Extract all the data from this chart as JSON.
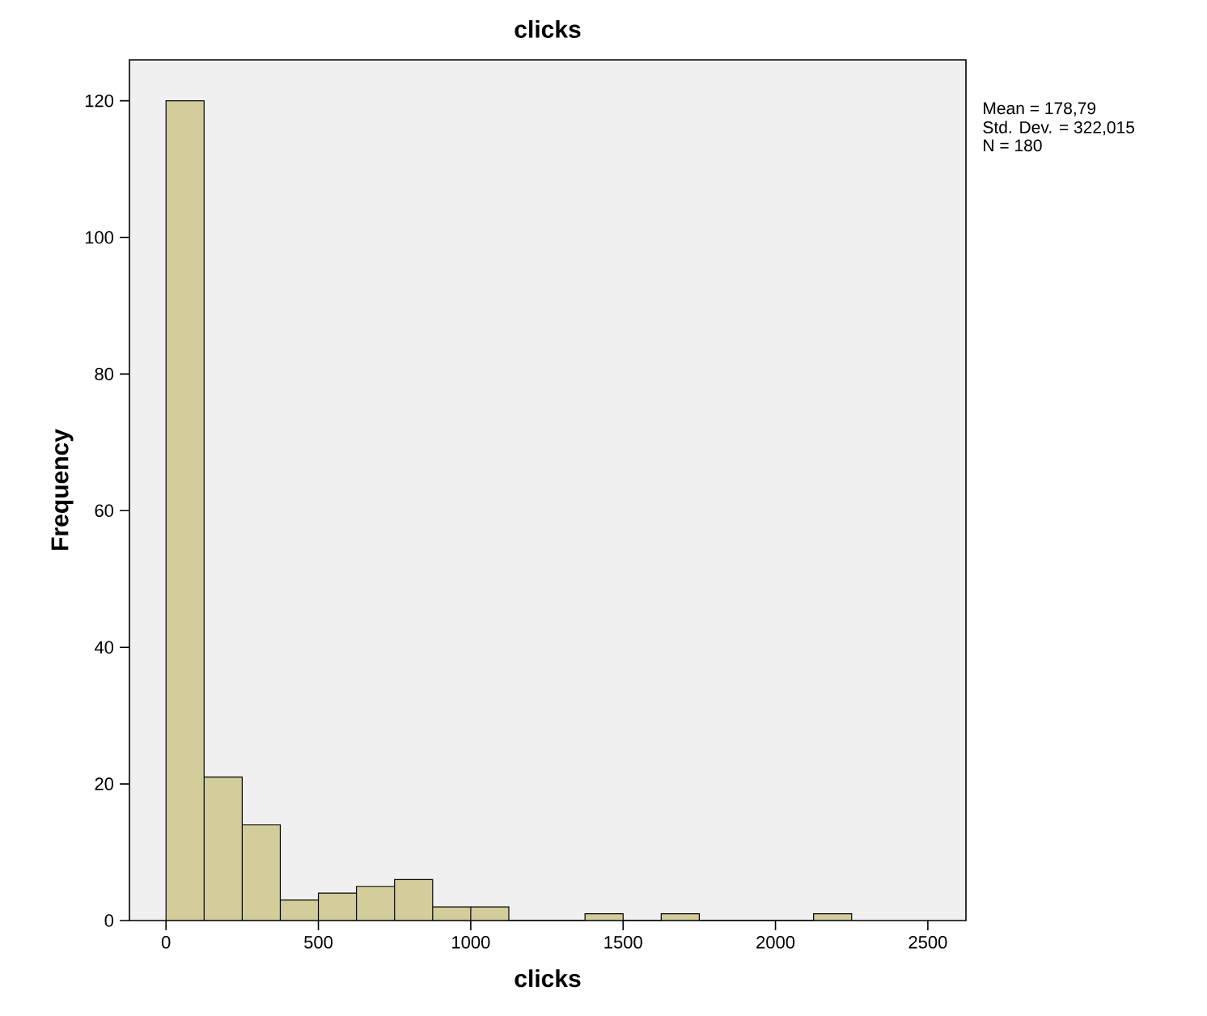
{
  "chart_data": {
    "type": "histogram",
    "title": "clicks",
    "xlabel": "clicks",
    "ylabel": "Frequency",
    "bins": [
      0,
      125,
      250,
      375,
      500,
      625,
      750,
      875,
      1000,
      1125,
      1250,
      1375,
      1500,
      1625,
      1750,
      1875,
      2000,
      2125,
      2250
    ],
    "values": [
      120,
      21,
      14,
      3,
      4,
      5,
      6,
      2,
      2,
      0,
      0,
      1,
      0,
      1,
      0,
      0,
      0,
      1
    ],
    "color": "#d3cd9b",
    "xlim": [
      -120,
      2625
    ],
    "ylim": [
      0,
      126
    ],
    "xticks": [
      0,
      500,
      1000,
      1500,
      2000,
      2500
    ],
    "yticks": [
      0,
      20,
      40,
      60,
      80,
      100,
      120
    ],
    "grid": false,
    "annotations": [
      "Mean = 178,79",
      "Std. Dev. = 322,015",
      "N = 180"
    ]
  }
}
